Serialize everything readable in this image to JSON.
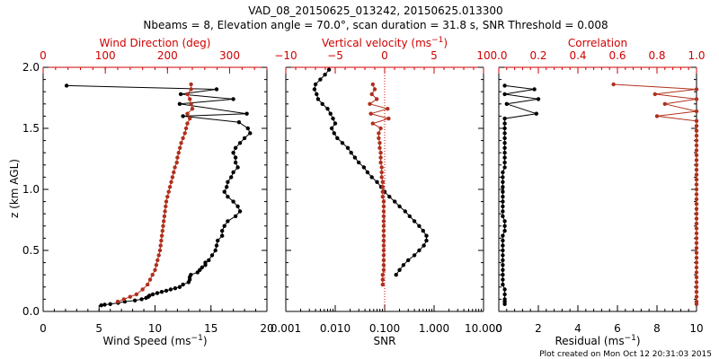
{
  "title_line1": "VAD_08_20150625_013242, 20150625.013300",
  "title_line2": "Nbeams = 8, Elevation angle = 70.0°, scan duration = 31.8 s, SNR Threshold = 0.008",
  "footer": "Plot created on Mon Oct 12 20:31:03 2015",
  "colors": {
    "black_series": "#000000",
    "red_series": "#b0301c",
    "red_axis": "#d00000"
  },
  "chart_data": [
    {
      "type": "line",
      "ylabel": "z (km AGL)",
      "ylim": [
        0,
        2
      ],
      "yticks": [
        "0.0",
        "0.5",
        "1.0",
        "1.5",
        "2.0"
      ],
      "bottom_axis": {
        "label": "Wind Speed",
        "unit_base": "ms",
        "unit_exp": "−1",
        "lim": [
          0,
          20
        ],
        "ticks": [
          "0",
          "5",
          "10",
          "15",
          "20"
        ]
      },
      "top_axis": {
        "label": "Wind Direction (deg)",
        "lim": [
          0,
          360
        ],
        "ticks": [
          "0",
          "100",
          "200",
          "300"
        ]
      },
      "series": [
        {
          "axis": "bottom",
          "color": "black",
          "x": [
            2.1,
            15.5,
            12.3,
            17.0,
            12.2,
            18.2,
            12.5,
            17.5,
            18.3,
            18.5,
            18.0,
            17.6,
            17.2,
            17.0,
            17.2,
            17.2,
            17.4,
            17.0,
            16.8,
            16.5,
            16.4,
            16.2,
            16.5,
            17.0,
            17.4,
            17.6,
            17.2,
            16.5,
            16.2,
            16.0,
            16.0,
            15.6,
            15.5,
            15.4,
            15.1,
            14.8,
            14.5,
            14.5,
            14.2,
            14.0,
            13.8,
            13.2,
            13.1,
            13.1,
            13.0,
            12.5,
            12.2,
            11.8,
            11.4,
            11.0,
            10.6,
            10.2,
            9.8,
            9.5,
            9.4,
            9.2,
            8.8,
            8.2,
            7.3,
            6.7,
            6.0,
            5.5,
            5.2
          ],
          "y": [
            1.85,
            1.82,
            1.78,
            1.74,
            1.7,
            1.62,
            1.6,
            1.55,
            1.5,
            1.46,
            1.42,
            1.38,
            1.34,
            1.3,
            1.26,
            1.22,
            1.18,
            1.14,
            1.1,
            1.06,
            1.02,
            0.98,
            0.94,
            0.9,
            0.86,
            0.82,
            0.78,
            0.74,
            0.7,
            0.66,
            0.62,
            0.58,
            0.54,
            0.5,
            0.46,
            0.42,
            0.4,
            0.38,
            0.36,
            0.34,
            0.32,
            0.3,
            0.28,
            0.26,
            0.24,
            0.22,
            0.2,
            0.19,
            0.18,
            0.17,
            0.16,
            0.15,
            0.14,
            0.13,
            0.12,
            0.11,
            0.1,
            0.09,
            0.08,
            0.07,
            0.06,
            0.055,
            0.05
          ]
        },
        {
          "axis": "top",
          "color": "red",
          "x": [
            238,
            238,
            232,
            236,
            238,
            240,
            232,
            236,
            232,
            230,
            228,
            225,
            222,
            220,
            218,
            216,
            215,
            212,
            210,
            208,
            206,
            204,
            202,
            200,
            198,
            197,
            196,
            195,
            194,
            193,
            192,
            191,
            190,
            189,
            188,
            186,
            184,
            182,
            180,
            176,
            172,
            168,
            160,
            150,
            140,
            130,
            120
          ],
          "y": [
            1.86,
            1.82,
            1.78,
            1.74,
            1.7,
            1.66,
            1.62,
            1.58,
            1.54,
            1.5,
            1.46,
            1.42,
            1.38,
            1.34,
            1.3,
            1.26,
            1.22,
            1.18,
            1.14,
            1.1,
            1.06,
            1.02,
            0.98,
            0.94,
            0.9,
            0.86,
            0.82,
            0.78,
            0.74,
            0.7,
            0.66,
            0.62,
            0.58,
            0.54,
            0.5,
            0.46,
            0.42,
            0.38,
            0.34,
            0.3,
            0.26,
            0.22,
            0.18,
            0.14,
            0.12,
            0.1,
            0.08
          ]
        }
      ]
    },
    {
      "type": "line",
      "ylim": [
        0,
        2
      ],
      "bottom_axis": {
        "label": "SNR",
        "scale": "log",
        "lim": [
          0.001,
          10
        ],
        "ticks": [
          "0.001",
          "0.010",
          "0.100",
          "1.000",
          "10.000"
        ]
      },
      "top_axis": {
        "label": "Vertical velocity",
        "unit_base": "ms",
        "unit_exp": "−1",
        "lim": [
          -10,
          10
        ],
        "ticks": [
          "−10",
          "−5",
          "0",
          "5",
          "10"
        ]
      },
      "series": [
        {
          "axis": "bottom",
          "color": "black",
          "x": [
            0.0075,
            0.0062,
            0.005,
            0.004,
            0.0038,
            0.0042,
            0.0045,
            0.0055,
            0.007,
            0.008,
            0.009,
            0.01,
            0.0085,
            0.0095,
            0.011,
            0.014,
            0.018,
            0.021,
            0.025,
            0.03,
            0.038,
            0.045,
            0.055,
            0.07,
            0.085,
            0.1,
            0.125,
            0.16,
            0.2,
            0.26,
            0.32,
            0.4,
            0.5,
            0.6,
            0.7,
            0.7,
            0.62,
            0.5,
            0.4,
            0.3,
            0.24,
            0.2,
            0.17
          ],
          "y": [
            1.98,
            1.94,
            1.9,
            1.86,
            1.82,
            1.78,
            1.74,
            1.7,
            1.66,
            1.62,
            1.58,
            1.54,
            1.5,
            1.46,
            1.42,
            1.38,
            1.34,
            1.3,
            1.26,
            1.22,
            1.18,
            1.14,
            1.1,
            1.06,
            1.02,
            0.98,
            0.94,
            0.9,
            0.86,
            0.82,
            0.78,
            0.74,
            0.7,
            0.66,
            0.62,
            0.58,
            0.54,
            0.5,
            0.46,
            0.42,
            0.38,
            0.34,
            0.3
          ]
        },
        {
          "axis": "top",
          "color": "red",
          "x": [
            -1.2,
            -1.0,
            -1.3,
            -0.8,
            -1.5,
            0.3,
            -1.4,
            0.4,
            -1.2,
            -0.4,
            -0.6,
            -0.6,
            -0.5,
            -0.5,
            -0.4,
            -0.4,
            -0.4,
            -0.3,
            -0.3,
            -0.3,
            -0.2,
            -0.2,
            -0.2,
            -0.2,
            -0.1,
            -0.1,
            -0.1,
            -0.1,
            -0.1,
            -0.1,
            -0.1,
            -0.1,
            -0.1,
            -0.1,
            -0.1,
            -0.1,
            -0.1,
            -0.1,
            -0.1,
            -0.2,
            -0.2,
            -0.2
          ],
          "y": [
            1.86,
            1.82,
            1.78,
            1.74,
            1.7,
            1.66,
            1.62,
            1.58,
            1.54,
            1.5,
            1.46,
            1.42,
            1.38,
            1.34,
            1.3,
            1.26,
            1.22,
            1.18,
            1.14,
            1.1,
            1.06,
            1.02,
            0.98,
            0.94,
            0.9,
            0.86,
            0.82,
            0.78,
            0.74,
            0.7,
            0.66,
            0.62,
            0.58,
            0.54,
            0.5,
            0.46,
            0.42,
            0.38,
            0.34,
            0.3,
            0.26,
            0.22
          ]
        }
      ]
    },
    {
      "type": "line",
      "ylim": [
        0,
        2
      ],
      "bottom_axis": {
        "label": "Residual",
        "unit_base": "ms",
        "unit_exp": "−1",
        "lim": [
          0,
          10
        ],
        "ticks": [
          "0",
          "2",
          "4",
          "6",
          "8",
          "10"
        ]
      },
      "top_axis": {
        "label": "Correlation",
        "lim": [
          0,
          1
        ],
        "ticks": [
          "0.0",
          "0.2",
          "0.4",
          "0.6",
          "0.8",
          "1.0"
        ]
      },
      "series": [
        {
          "axis": "bottom",
          "color": "black",
          "x": [
            0.3,
            1.8,
            0.3,
            2.0,
            0.4,
            1.9,
            0.3,
            0.3,
            0.3,
            0.3,
            0.3,
            0.3,
            0.3,
            0.3,
            0.3,
            0.3,
            0.3,
            0.2,
            0.2,
            0.2,
            0.2,
            0.2,
            0.2,
            0.2,
            0.2,
            0.2,
            0.2,
            0.3,
            0.3,
            0.3,
            0.2,
            0.2,
            0.2,
            0.2,
            0.2,
            0.2,
            0.2,
            0.2,
            0.2,
            0.2,
            0.2,
            0.3,
            0.3,
            0.3,
            0.3,
            0.3
          ],
          "y": [
            1.85,
            1.82,
            1.78,
            1.74,
            1.7,
            1.62,
            1.58,
            1.54,
            1.5,
            1.46,
            1.42,
            1.38,
            1.34,
            1.3,
            1.26,
            1.22,
            1.18,
            1.14,
            1.1,
            1.06,
            1.02,
            0.98,
            0.94,
            0.9,
            0.86,
            0.82,
            0.78,
            0.74,
            0.7,
            0.66,
            0.62,
            0.58,
            0.54,
            0.5,
            0.46,
            0.42,
            0.38,
            0.34,
            0.3,
            0.26,
            0.22,
            0.18,
            0.14,
            0.1,
            0.08,
            0.06
          ]
        },
        {
          "axis": "top",
          "color": "red",
          "x": [
            0.58,
            1.0,
            0.79,
            1.0,
            0.84,
            1.0,
            0.8,
            1.0,
            1.0,
            1.0,
            1.0,
            1.0,
            1.0,
            1.0,
            1.0,
            1.0,
            1.0,
            1.0,
            1.0,
            1.0,
            1.0,
            1.0,
            1.0,
            1.0,
            1.0,
            1.0,
            1.0,
            1.0,
            1.0,
            1.0,
            1.0,
            1.0,
            1.0,
            1.0,
            1.0,
            1.0,
            1.0,
            1.0,
            1.0,
            1.0,
            1.0,
            1.0,
            1.0,
            1.0,
            1.0,
            1.0
          ],
          "y": [
            1.86,
            1.82,
            1.78,
            1.74,
            1.7,
            1.64,
            1.6,
            1.56,
            1.52,
            1.48,
            1.44,
            1.4,
            1.36,
            1.32,
            1.28,
            1.24,
            1.2,
            1.16,
            1.12,
            1.08,
            1.04,
            1.0,
            0.96,
            0.92,
            0.88,
            0.84,
            0.8,
            0.76,
            0.72,
            0.68,
            0.64,
            0.6,
            0.56,
            0.52,
            0.48,
            0.44,
            0.4,
            0.36,
            0.32,
            0.28,
            0.24,
            0.2,
            0.16,
            0.12,
            0.08,
            0.06
          ]
        }
      ]
    }
  ]
}
